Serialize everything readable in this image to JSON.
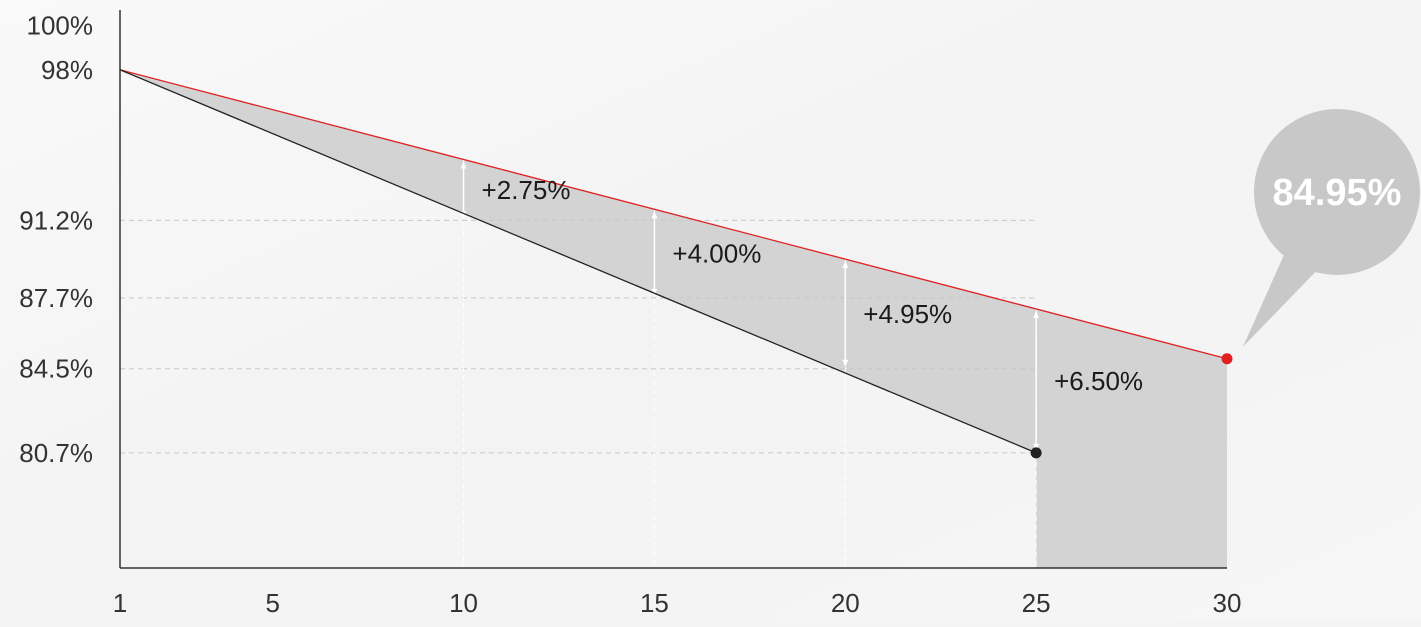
{
  "chart_data": {
    "type": "area",
    "x_ticks": [
      1,
      5,
      10,
      15,
      20,
      25,
      30
    ],
    "y_ticks": [
      {
        "value": 100,
        "label": "100%"
      },
      {
        "value": 98,
        "label": "98%"
      },
      {
        "value": 91.2,
        "label": "91.2%"
      },
      {
        "value": 87.7,
        "label": "87.7%"
      },
      {
        "value": 84.5,
        "label": "84.5%"
      },
      {
        "value": 80.7,
        "label": "80.7%"
      }
    ],
    "dashed_gridlines_y": [
      91.2,
      87.7,
      84.5,
      80.7
    ],
    "dashed_gridlines_x": [
      10,
      15,
      20,
      25
    ],
    "xlim": [
      1,
      30
    ],
    "ylim": [
      75.5,
      100.7
    ],
    "series": [
      {
        "color": "#e02020",
        "points": [
          {
            "x": 1,
            "y": 98
          },
          {
            "x": 30,
            "y": 84.95
          }
        ]
      },
      {
        "color": "#222222",
        "points": [
          {
            "x": 1,
            "y": 98
          },
          {
            "x": 25,
            "y": 80.7
          }
        ]
      }
    ],
    "annotations": [
      {
        "x": 10,
        "y_low": 91.2,
        "y_high": 93.95,
        "label": "+2.75%"
      },
      {
        "x": 15,
        "y_low": 87.7,
        "y_high": 91.7,
        "label": "+4.00%"
      },
      {
        "x": 20,
        "y_low": 84.5,
        "y_high": 89.45,
        "label": "+4.95%"
      },
      {
        "x": 25,
        "y_low": 80.7,
        "y_high": 87.2,
        "label": "+6.50%"
      }
    ],
    "callout": {
      "x": 30,
      "y": 84.95,
      "label": "84.95%"
    },
    "colors": {
      "fill": "#d3d3d3",
      "axis": "#333333",
      "grid": "#c8c8c8",
      "bubble": "#c8c8c8"
    }
  }
}
